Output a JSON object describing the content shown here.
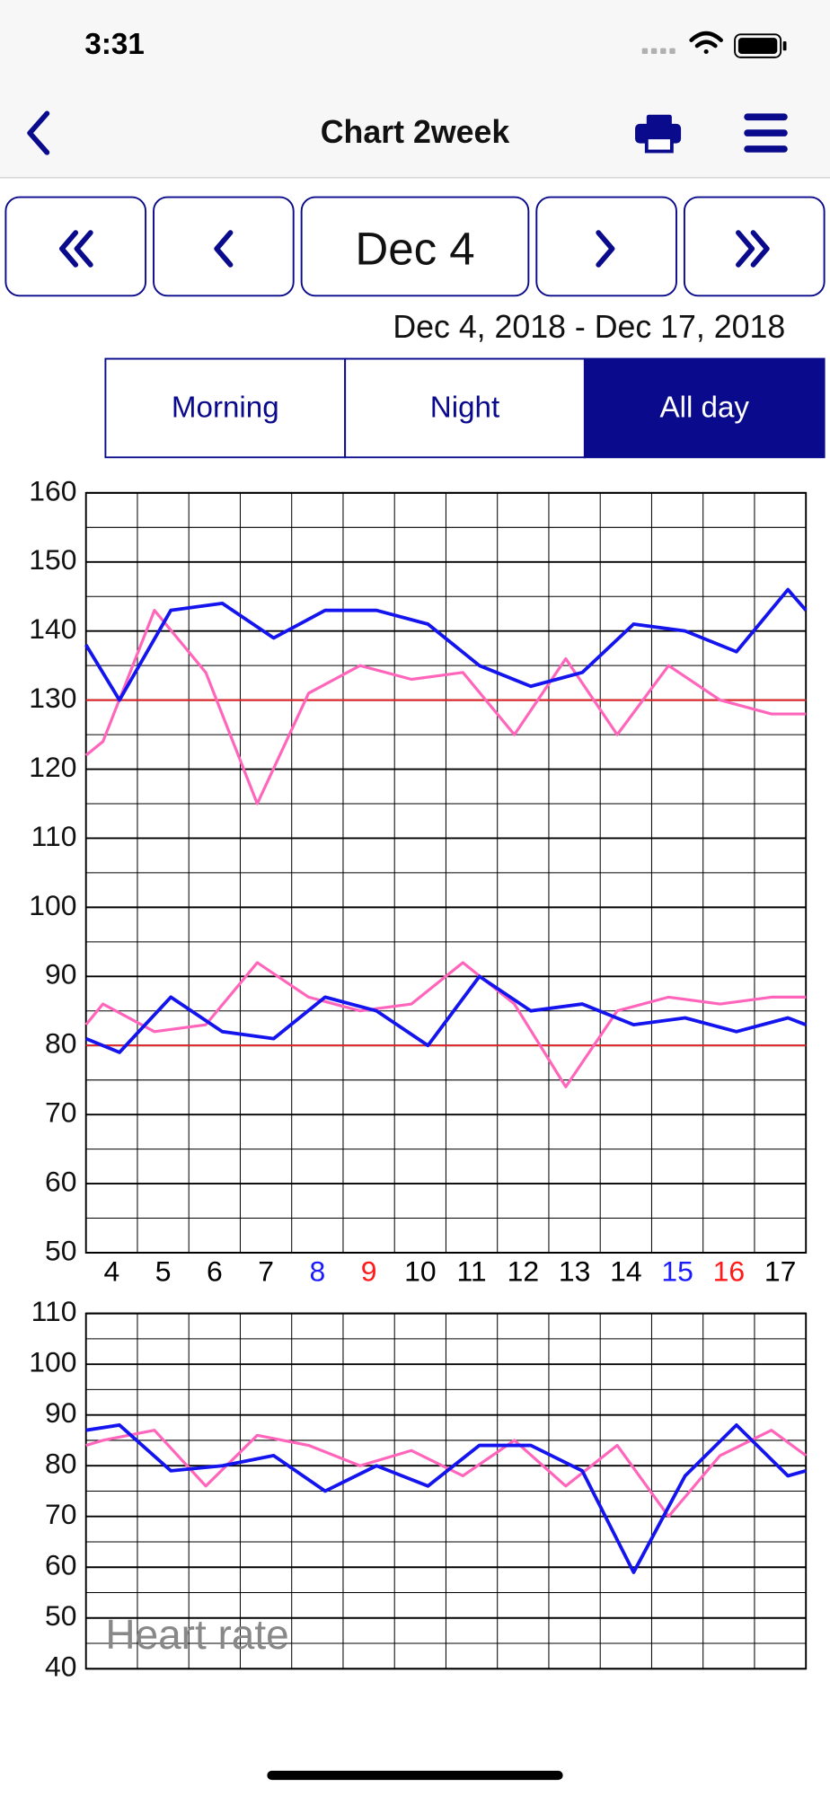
{
  "status_bar": {
    "time": "3:31"
  },
  "header": {
    "title": "Chart  2week"
  },
  "navigation": {
    "date": "Dec 4",
    "range": "Dec 4, 2018 - Dec 17, 2018"
  },
  "segments": {
    "items": [
      "Morning",
      "Night",
      "All day"
    ],
    "selected": 2
  },
  "chart_data": [
    {
      "type": "line",
      "xlim": [
        3.5,
        17.5
      ],
      "ylim": [
        50,
        160
      ],
      "yticks": [
        50,
        60,
        70,
        80,
        90,
        100,
        110,
        120,
        130,
        140,
        150,
        160
      ],
      "xticks": [
        4,
        5,
        6,
        7,
        8,
        9,
        10,
        11,
        12,
        13,
        14,
        15,
        16,
        17
      ],
      "xtick_colors": [
        "#000000",
        "#000000",
        "#000000",
        "#000000",
        "#1a1aff",
        "#ff1a1a",
        "#000000",
        "#000000",
        "#000000",
        "#000000",
        "#000000",
        "#1a1aff",
        "#ff1a1a",
        "#000000"
      ],
      "grid": true,
      "reference_lines": [
        130,
        80
      ],
      "reference_color": "#e8262a",
      "series": [
        {
          "color": "#ff66bb",
          "x": [
            3.5,
            3.83,
            4.83,
            5.83,
            6.83,
            7.83,
            8.83,
            9.83,
            10.83,
            11.83,
            12.83,
            13.83,
            14.83,
            15.83,
            16.83,
            17.5
          ],
          "values": [
            122,
            124,
            143,
            134,
            115,
            131,
            135,
            133,
            134,
            125,
            136,
            125,
            135,
            130,
            128,
            128
          ]
        },
        {
          "color": "#1414ee",
          "x": [
            3.5,
            4.15,
            5.15,
            6.15,
            7.15,
            8.15,
            9.15,
            10.15,
            11.15,
            12.15,
            13.15,
            14.15,
            15.15,
            16.15,
            17.15,
            17.5
          ],
          "values": [
            138,
            130,
            143,
            144,
            139,
            143,
            143,
            141,
            135,
            132,
            134,
            141,
            140,
            137,
            146,
            143
          ]
        },
        {
          "color": "#ff66bb",
          "x": [
            3.5,
            3.83,
            4.83,
            5.83,
            6.83,
            7.83,
            8.83,
            9.83,
            10.83,
            11.83,
            12.83,
            13.83,
            14.83,
            15.83,
            16.83,
            17.5
          ],
          "values": [
            83,
            86,
            82,
            83,
            92,
            87,
            85,
            86,
            92,
            86,
            74,
            85,
            87,
            86,
            87,
            87
          ]
        },
        {
          "color": "#1414ee",
          "x": [
            3.5,
            4.15,
            5.15,
            6.15,
            7.15,
            8.15,
            9.15,
            10.15,
            11.15,
            12.15,
            13.15,
            14.15,
            15.15,
            16.15,
            17.15,
            17.5
          ],
          "values": [
            81,
            79,
            87,
            82,
            81,
            87,
            85,
            80,
            90,
            85,
            86,
            83,
            84,
            82,
            84,
            83
          ]
        }
      ]
    },
    {
      "type": "line",
      "title": "Heart rate",
      "xlim": [
        3.5,
        17.5
      ],
      "ylim": [
        40,
        110
      ],
      "yticks": [
        40,
        50,
        60,
        70,
        80,
        90,
        100,
        110
      ],
      "grid": true,
      "series": [
        {
          "color": "#ff66bb",
          "x": [
            3.5,
            3.83,
            4.83,
            5.83,
            6.83,
            7.83,
            8.83,
            9.83,
            10.83,
            11.83,
            12.83,
            13.83,
            14.83,
            15.83,
            16.83,
            17.5
          ],
          "values": [
            84,
            85,
            87,
            76,
            86,
            84,
            80,
            83,
            78,
            85,
            76,
            84,
            70,
            82,
            87,
            82
          ]
        },
        {
          "color": "#1414ee",
          "x": [
            3.5,
            4.15,
            5.15,
            6.15,
            7.15,
            8.15,
            9.15,
            10.15,
            11.15,
            12.15,
            13.15,
            14.15,
            15.15,
            16.15,
            17.15,
            17.5
          ],
          "values": [
            87,
            88,
            79,
            80,
            82,
            75,
            80,
            76,
            84,
            84,
            79,
            59,
            78,
            88,
            78,
            79
          ]
        }
      ]
    }
  ]
}
